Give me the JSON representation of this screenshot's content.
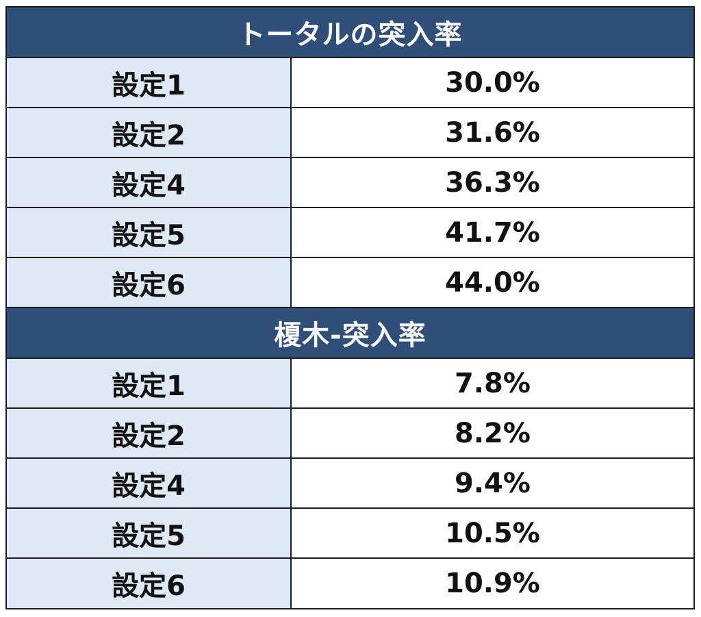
{
  "sections": [
    {
      "title": "トータルの突入率",
      "rows": [
        {
          "label": "設定1",
          "value": "30.0%"
        },
        {
          "label": "設定2",
          "value": "31.6%"
        },
        {
          "label": "設定4",
          "value": "36.3%"
        },
        {
          "label": "設定5",
          "value": "41.7%"
        },
        {
          "label": "設定6",
          "value": "44.0%"
        }
      ]
    },
    {
      "title": "榎木-突入率",
      "rows": [
        {
          "label": "設定1",
          "value": "7.8%"
        },
        {
          "label": "設定2",
          "value": "8.2%"
        },
        {
          "label": "設定4",
          "value": "9.4%"
        },
        {
          "label": "設定5",
          "value": "10.5%"
        },
        {
          "label": "設定6",
          "value": "10.9%"
        }
      ]
    }
  ],
  "colors": {
    "header_bg": "#2f4f78",
    "label_bg": "#dfe8f5",
    "border": "#1c1c1c"
  }
}
